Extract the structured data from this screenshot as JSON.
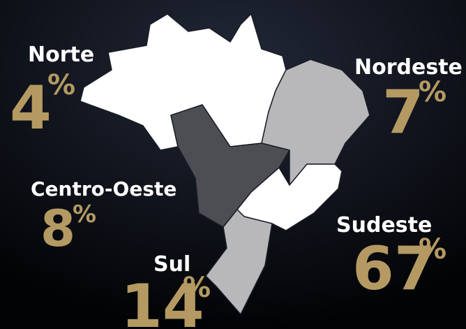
{
  "regions": [
    {
      "name": "Norte",
      "value": 4,
      "unit": "%"
    },
    {
      "name": "Nordeste",
      "value": 7,
      "unit": "%"
    },
    {
      "name": "Centro-Oeste",
      "value": 8,
      "unit": "%"
    },
    {
      "name": "Sudeste",
      "value": 67,
      "unit": "%"
    },
    {
      "name": "Sul",
      "value": 14,
      "unit": "%"
    }
  ]
}
